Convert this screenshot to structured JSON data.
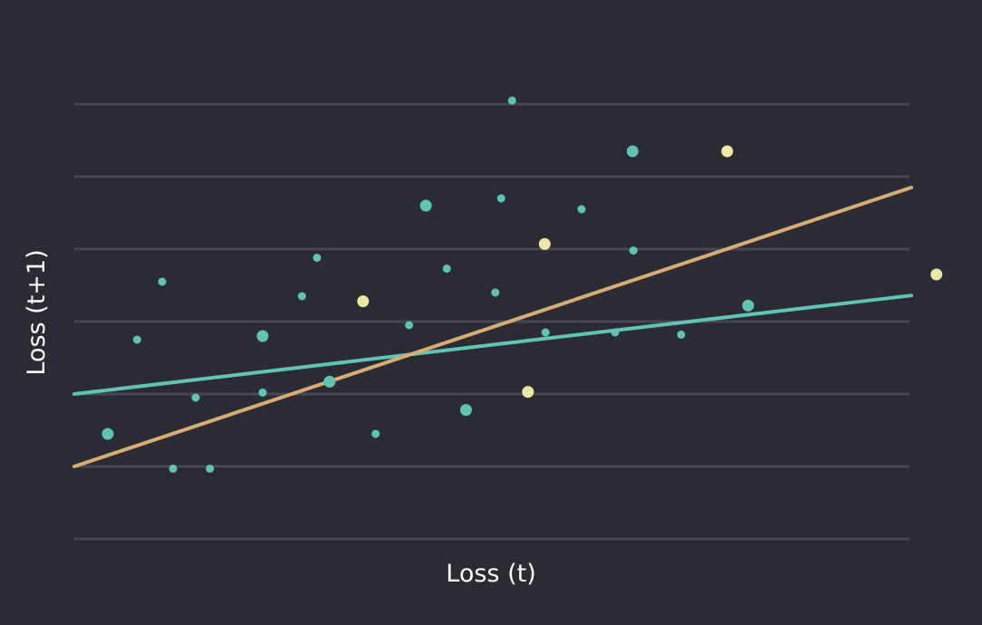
{
  "chart_data": {
    "type": "scatter",
    "title": "",
    "xlabel": "Loss (t)",
    "ylabel": "Loss (t+1)",
    "xlim": [
      0,
      1
    ],
    "ylim": [
      0,
      6
    ],
    "grid": "horizontal",
    "gridlines_y": [
      0,
      1,
      2,
      3,
      4,
      5,
      6
    ],
    "colors": {
      "background": "#2b2b33",
      "grid": "#474752",
      "teal": "#5fc4b2",
      "yellow": "#ece7a6",
      "teal_line": "#5fc4b2",
      "tan_line": "#d6ad75",
      "text": "#ffffff"
    },
    "series": [
      {
        "color": "teal",
        "points": [
          {
            "x": 0.04,
            "y": 1.45,
            "size": "large"
          },
          {
            "x": 0.075,
            "y": 2.75,
            "size": "small"
          },
          {
            "x": 0.105,
            "y": 3.55,
            "size": "small"
          },
          {
            "x": 0.118,
            "y": 0.97,
            "size": "small"
          },
          {
            "x": 0.145,
            "y": 1.95,
            "size": "small"
          },
          {
            "x": 0.162,
            "y": 0.97,
            "size": "small"
          },
          {
            "x": 0.225,
            "y": 2.8,
            "size": "large"
          },
          {
            "x": 0.225,
            "y": 2.02,
            "size": "small"
          },
          {
            "x": 0.272,
            "y": 3.35,
            "size": "small"
          },
          {
            "x": 0.29,
            "y": 3.88,
            "size": "small"
          },
          {
            "x": 0.305,
            "y": 2.17,
            "size": "large"
          },
          {
            "x": 0.36,
            "y": 1.45,
            "size": "small"
          },
          {
            "x": 0.4,
            "y": 2.95,
            "size": "small"
          },
          {
            "x": 0.42,
            "y": 4.6,
            "size": "large"
          },
          {
            "x": 0.445,
            "y": 3.73,
            "size": "small"
          },
          {
            "x": 0.468,
            "y": 1.78,
            "size": "large"
          },
          {
            "x": 0.503,
            "y": 3.4,
            "size": "small"
          },
          {
            "x": 0.51,
            "y": 4.7,
            "size": "small"
          },
          {
            "x": 0.523,
            "y": 6.05,
            "size": "small"
          },
          {
            "x": 0.563,
            "y": 2.85,
            "size": "small"
          },
          {
            "x": 0.606,
            "y": 4.55,
            "size": "small"
          },
          {
            "x": 0.646,
            "y": 2.85,
            "size": "small"
          },
          {
            "x": 0.667,
            "y": 5.35,
            "size": "large"
          },
          {
            "x": 0.668,
            "y": 3.98,
            "size": "small"
          },
          {
            "x": 0.725,
            "y": 2.82,
            "size": "small"
          },
          {
            "x": 0.805,
            "y": 3.22,
            "size": "large"
          }
        ]
      },
      {
        "color": "yellow",
        "points": [
          {
            "x": 0.345,
            "y": 3.28,
            "size": "large"
          },
          {
            "x": 0.542,
            "y": 2.03,
            "size": "large"
          },
          {
            "x": 0.562,
            "y": 4.07,
            "size": "large"
          },
          {
            "x": 0.78,
            "y": 5.35,
            "size": "large"
          },
          {
            "x": 1.03,
            "y": 3.65,
            "size": "large"
          }
        ]
      }
    ],
    "lines": [
      {
        "color": "teal_line",
        "x": [
          0,
          1
        ],
        "y": [
          2.0,
          3.36
        ]
      },
      {
        "color": "tan_line",
        "x": [
          0,
          1
        ],
        "y": [
          1.0,
          4.85
        ]
      }
    ]
  }
}
